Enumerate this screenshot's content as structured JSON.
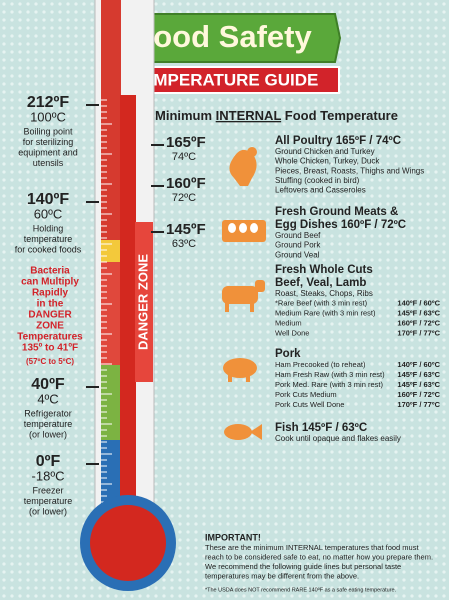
{
  "title": "Food Safety",
  "subtitle": "TEMPERATURE GUIDE",
  "danger_label": "DANGER ZONE",
  "left_scale": [
    {
      "f": "212ºF",
      "c": "100ºC",
      "lines": [
        "Boiling point",
        "for sterilizing",
        "equipment and",
        "utensils"
      ]
    },
    {
      "f": "140ºF",
      "c": "60ºC",
      "lines": [
        "Holding",
        "temperature",
        "for cooked foods"
      ]
    },
    {
      "f": "40ºF",
      "c": "4ºC",
      "lines": [
        "Refrigerator",
        "temperature",
        "(or lower)"
      ]
    },
    {
      "f": "0ºF",
      "c": "-18ºC",
      "lines": [
        "Freezer",
        "temperature",
        "(or lower)"
      ]
    }
  ],
  "danger_note": {
    "lines": [
      "Bacteria",
      "can Multiply",
      "Rapidly",
      "in the",
      "DANGER",
      "ZONE",
      "Temperatures",
      "135º to 41ºF"
    ],
    "sub": "(57ºC to 5ºC)"
  },
  "right_scale": [
    {
      "f": "165ºF",
      "c": "74ºC"
    },
    {
      "f": "160ºF",
      "c": "72ºC"
    },
    {
      "f": "145ºF",
      "c": "63ºC"
    }
  ],
  "heading": {
    "pre": "Minimum ",
    "em": "INTERNAL",
    "post": " Food Temperature"
  },
  "sections": [
    {
      "title": [
        "All Poultry  165ºF / 74ºC"
      ],
      "items": [
        "Ground Chicken and Turkey",
        "Whole Chicken, Turkey, Duck",
        "Pieces, Breast, Roasts, Thighs and Wings",
        "Stuffing (cooked in bird)",
        "Leftovers and Casseroles"
      ],
      "rows": []
    },
    {
      "title": [
        "Fresh Ground Meats &",
        "Egg Dishes  160ºF / 72ºC"
      ],
      "items": [
        "Ground Beef",
        "Ground Pork",
        "Ground Veal"
      ],
      "rows": []
    },
    {
      "title": [
        "Fresh Whole Cuts",
        "Beef, Veal, Lamb"
      ],
      "items": [
        "Roast, Steaks, Chops, Ribs"
      ],
      "rows": [
        [
          "*Rare Beef (with 3 min rest)",
          "140ºF / 60ºC"
        ],
        [
          "Medium Rare (with 3 min rest)",
          "145ºF / 63ºC"
        ],
        [
          "Medium",
          "160ºF / 72ºC"
        ],
        [
          "Well Done",
          "170ºF / 77ºC"
        ]
      ]
    },
    {
      "title": [
        "Pork"
      ],
      "items": [],
      "rows": [
        [
          "Ham Precooked (to reheat)",
          "140ºF / 60ºC"
        ],
        [
          "Ham Fresh Raw (with 3 min rest)",
          "145ºF / 63ºC"
        ],
        [
          "Pork Med. Rare (with 3 min rest)",
          "145ºF / 63ºC"
        ],
        [
          "Pork Cuts Medium",
          "160ºF / 72ºC"
        ],
        [
          "Pork Cuts Well Done",
          "170ºF / 77ºC"
        ]
      ]
    },
    {
      "title": [
        "Fish  145ºF / 63ºC"
      ],
      "items": [
        "Cook until opaque and flakes easily"
      ],
      "rows": []
    }
  ],
  "footer": {
    "important": "IMPORTANT!",
    "lines": [
      "These are the minimum INTERNAL temperatures that food must",
      "reach to be considered safe to eat, no matter how you prepare them.",
      "We recommend the following guide lines but personal taste",
      "temperatures may be different from the above."
    ],
    "note": "*The USDA does NOT recommend RARE 140ºF as a safe eating temperature."
  }
}
